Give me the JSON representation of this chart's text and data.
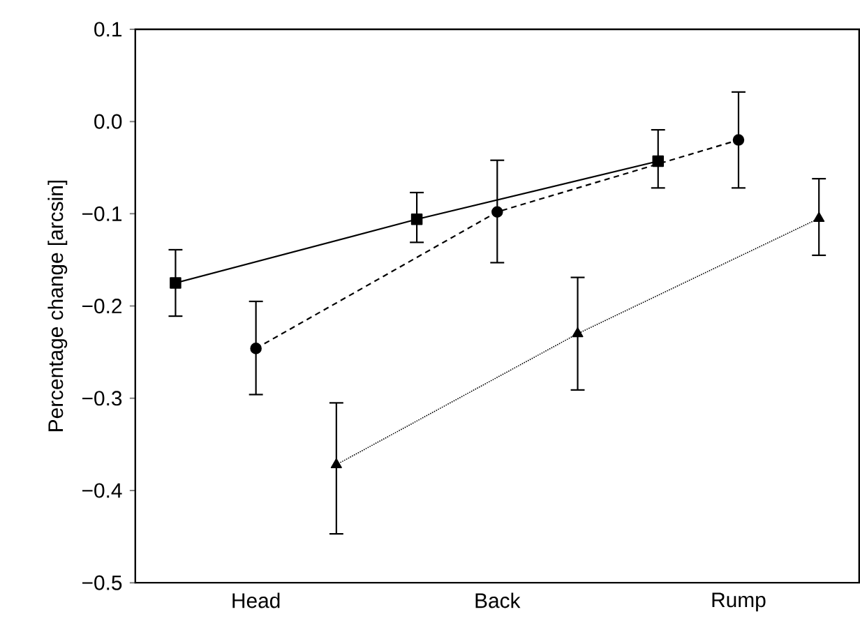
{
  "chart_data": {
    "type": "line",
    "ylabel": "Percentage change [arcsin]",
    "categories": [
      null,
      "Head",
      null,
      null,
      "Back",
      null,
      null,
      "Rump",
      null
    ],
    "ylim": [
      -0.5,
      0.1
    ],
    "yticks": [
      {
        "value": 0.1,
        "label": "0.1"
      },
      {
        "value": 0.0,
        "label": "0.0"
      },
      {
        "value": -0.1,
        "label": "−0.1"
      },
      {
        "value": -0.2,
        "label": "−0.2"
      },
      {
        "value": -0.3,
        "label": "−0.3"
      },
      {
        "value": -0.4,
        "label": "−0.4"
      },
      {
        "value": -0.5,
        "label": "−0.5"
      }
    ],
    "grid": false,
    "series": [
      {
        "color": "#000000",
        "marker": "square",
        "line_style": "solid",
        "values": [
          -0.175,
          null,
          null,
          -0.106,
          null,
          null,
          -0.043,
          null,
          null
        ],
        "errors": [
          [
            -0.211,
            -0.139
          ],
          null,
          null,
          [
            -0.131,
            -0.077
          ],
          null,
          null,
          [
            -0.072,
            -0.009
          ],
          null,
          null
        ]
      },
      {
        "color": "#000000",
        "marker": "circle",
        "line_style": "dashed",
        "values": [
          null,
          -0.246,
          null,
          null,
          -0.098,
          null,
          null,
          -0.02,
          null
        ],
        "errors": [
          null,
          [
            -0.296,
            -0.195
          ],
          null,
          null,
          [
            -0.153,
            -0.042
          ],
          null,
          null,
          [
            -0.072,
            0.032
          ],
          null
        ]
      },
      {
        "color": "#000000",
        "marker": "triangle",
        "line_style": "dotted",
        "values": [
          null,
          null,
          -0.372,
          null,
          null,
          -0.23,
          null,
          null,
          -0.105
        ],
        "errors": [
          null,
          null,
          [
            -0.447,
            -0.305
          ],
          null,
          null,
          [
            -0.291,
            -0.169
          ],
          null,
          null,
          [
            -0.145,
            -0.062
          ]
        ]
      }
    ]
  }
}
